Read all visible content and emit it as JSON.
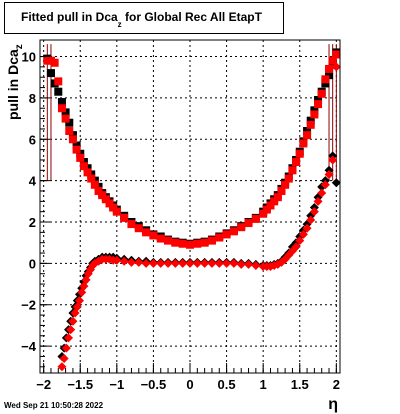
{
  "title": {
    "main": "Fitted pull in Dca",
    "sub": "z",
    "rest": " for Global Rec All EtapT"
  },
  "ylabel": {
    "main": "pull in Dca",
    "sub": "z"
  },
  "xlabel": "η",
  "footer": "Wed Sep 21 10:50:28 2022",
  "colors": {
    "red": "#ff0000",
    "black": "#000000",
    "grid": "#000000",
    "errorbar": "#8b0000"
  },
  "chart_data": {
    "type": "scatter",
    "xlim": [
      -2.05,
      2.05
    ],
    "ylim": [
      -5.3,
      10.8
    ],
    "xticks": [
      -2,
      -1.5,
      -1,
      -0.5,
      0,
      0.5,
      1,
      1.5,
      2
    ],
    "yticks": [
      -4,
      -2,
      0,
      2,
      4,
      6,
      8,
      10
    ],
    "grid": true,
    "series": [
      {
        "marker": "square",
        "color": "black",
        "x": [
          -1.95,
          -1.9,
          -1.85,
          -1.8,
          -1.75,
          -1.7,
          -1.65,
          -1.6,
          -1.55,
          -1.5,
          -1.45,
          -1.4,
          -1.35,
          -1.3,
          -1.25,
          -1.2,
          -1.15,
          -1.1,
          -1.05,
          -1.0,
          -0.9,
          -0.8,
          -0.7,
          -0.6,
          -0.5,
          -0.4,
          -0.3,
          -0.2,
          -0.1,
          0.0,
          0.1,
          0.2,
          0.3,
          0.4,
          0.5,
          0.6,
          0.7,
          0.8,
          0.9,
          1.0,
          1.05,
          1.1,
          1.15,
          1.2,
          1.25,
          1.3,
          1.35,
          1.4,
          1.45,
          1.5,
          1.55,
          1.6,
          1.65,
          1.7,
          1.75,
          1.8,
          1.85,
          1.9,
          1.95,
          2.0
        ],
        "y": [
          9.9,
          9.2,
          8.7,
          8.3,
          7.8,
          7.3,
          6.8,
          6.2,
          5.7,
          5.3,
          4.9,
          4.6,
          4.3,
          4.0,
          3.7,
          3.4,
          3.2,
          3.0,
          2.8,
          2.6,
          2.3,
          2.0,
          1.8,
          1.6,
          1.4,
          1.3,
          1.15,
          1.05,
          1.0,
          0.95,
          1.0,
          1.05,
          1.15,
          1.3,
          1.45,
          1.6,
          1.8,
          2.0,
          2.2,
          2.5,
          2.7,
          2.9,
          3.1,
          3.3,
          3.6,
          3.9,
          4.2,
          4.6,
          5.0,
          5.4,
          5.9,
          6.4,
          6.9,
          7.4,
          7.9,
          8.3,
          8.7,
          9.1,
          9.6,
          10.2
        ]
      },
      {
        "marker": "square",
        "color": "red",
        "x": [
          -1.95,
          -1.9,
          -1.85,
          -1.8,
          -1.75,
          -1.7,
          -1.65,
          -1.6,
          -1.55,
          -1.5,
          -1.45,
          -1.4,
          -1.35,
          -1.3,
          -1.25,
          -1.2,
          -1.15,
          -1.1,
          -1.05,
          -1.0,
          -0.9,
          -0.8,
          -0.7,
          -0.6,
          -0.5,
          -0.4,
          -0.3,
          -0.2,
          -0.1,
          0.0,
          0.1,
          0.2,
          0.3,
          0.4,
          0.5,
          0.6,
          0.7,
          0.8,
          0.9,
          1.0,
          1.05,
          1.1,
          1.15,
          1.2,
          1.25,
          1.3,
          1.35,
          1.4,
          1.45,
          1.5,
          1.55,
          1.6,
          1.65,
          1.7,
          1.75,
          1.8,
          1.85,
          1.9,
          1.95,
          2.0
        ],
        "y": [
          9.8,
          9.8,
          9.7,
          8.8,
          7.5,
          7.0,
          6.4,
          6.0,
          5.5,
          5.1,
          4.7,
          4.4,
          4.1,
          3.8,
          3.5,
          3.3,
          3.1,
          2.9,
          2.7,
          2.5,
          2.2,
          1.9,
          1.7,
          1.5,
          1.35,
          1.2,
          1.1,
          1.0,
          0.95,
          0.9,
          0.95,
          1.0,
          1.1,
          1.25,
          1.4,
          1.55,
          1.75,
          1.95,
          2.15,
          2.4,
          2.6,
          2.8,
          3.0,
          3.2,
          3.5,
          3.8,
          4.1,
          4.5,
          4.9,
          5.3,
          5.8,
          6.2,
          6.7,
          7.2,
          7.7,
          8.2,
          8.9,
          9.4,
          9.8,
          10.1
        ]
      },
      {
        "marker": "diamond",
        "color": "black",
        "x": [
          -1.75,
          -1.72,
          -1.69,
          -1.66,
          -1.63,
          -1.6,
          -1.57,
          -1.54,
          -1.51,
          -1.48,
          -1.45,
          -1.42,
          -1.39,
          -1.36,
          -1.33,
          -1.3,
          -1.25,
          -1.2,
          -1.15,
          -1.1,
          -1.05,
          -1.0,
          -0.9,
          -0.8,
          -0.7,
          -0.6,
          -0.5,
          -0.4,
          -0.3,
          -0.2,
          -0.1,
          0.0,
          0.1,
          0.2,
          0.3,
          0.4,
          0.5,
          0.6,
          0.7,
          0.8,
          0.9,
          1.0,
          1.05,
          1.1,
          1.15,
          1.2,
          1.25,
          1.3,
          1.35,
          1.4,
          1.45,
          1.5,
          1.55,
          1.6,
          1.65,
          1.7,
          1.75,
          1.8,
          1.85,
          1.9,
          1.95,
          2.0
        ],
        "y": [
          -4.5,
          -4.1,
          -3.6,
          -3.2,
          -2.8,
          -2.4,
          -2.1,
          -1.8,
          -1.5,
          -1.2,
          -0.9,
          -0.6,
          -0.4,
          -0.2,
          0.0,
          0.1,
          0.2,
          0.3,
          0.3,
          0.3,
          0.3,
          0.25,
          0.2,
          0.15,
          0.1,
          0.1,
          0.05,
          0.05,
          0.05,
          0.05,
          0.05,
          0.05,
          0.05,
          0.05,
          0.05,
          0.05,
          0.05,
          0.05,
          0.0,
          0.0,
          -0.05,
          -0.1,
          -0.1,
          -0.1,
          -0.05,
          0.0,
          0.1,
          0.3,
          0.5,
          0.8,
          1.0,
          1.3,
          1.6,
          1.9,
          2.3,
          2.7,
          3.2,
          3.7,
          4.0,
          4.5,
          5.2,
          3.9
        ]
      },
      {
        "marker": "diamond",
        "color": "red",
        "x": [
          -1.75,
          -1.72,
          -1.69,
          -1.66,
          -1.63,
          -1.6,
          -1.57,
          -1.54,
          -1.51,
          -1.48,
          -1.45,
          -1.42,
          -1.39,
          -1.36,
          -1.33,
          -1.3,
          -1.25,
          -1.2,
          -1.15,
          -1.1,
          -1.05,
          -1.0,
          -0.9,
          -0.8,
          -0.7,
          -0.6,
          -0.5,
          -0.4,
          -0.3,
          -0.2,
          -0.1,
          0.0,
          0.1,
          0.2,
          0.3,
          0.4,
          0.5,
          0.6,
          0.7,
          0.8,
          0.9,
          1.0,
          1.05,
          1.1,
          1.15,
          1.2,
          1.25,
          1.3,
          1.35,
          1.4,
          1.45,
          1.5,
          1.55,
          1.6,
          1.65,
          1.7,
          1.75,
          1.8,
          1.85,
          1.9,
          1.95,
          2.0
        ],
        "y": [
          -5.0,
          -4.6,
          -4.1,
          -3.6,
          -3.2,
          -2.8,
          -2.4,
          -2.1,
          -1.8,
          -1.4,
          -1.1,
          -0.8,
          -0.5,
          -0.3,
          -0.1,
          0.0,
          0.1,
          0.2,
          0.2,
          0.2,
          0.15,
          0.15,
          0.1,
          0.05,
          0.05,
          0.0,
          0.0,
          0.0,
          0.0,
          0.0,
          0.0,
          0.0,
          0.0,
          0.0,
          0.0,
          0.0,
          0.0,
          0.0,
          -0.05,
          -0.05,
          -0.1,
          -0.15,
          -0.15,
          -0.15,
          -0.1,
          -0.05,
          0.05,
          0.2,
          0.4,
          0.6,
          0.8,
          1.1,
          1.4,
          1.7,
          2.1,
          2.5,
          3.0,
          3.4,
          3.8,
          4.3,
          5.0,
          9.5
        ]
      }
    ]
  }
}
